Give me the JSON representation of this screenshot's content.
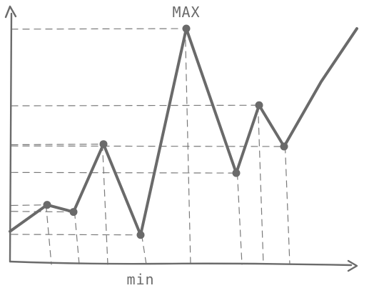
{
  "chart_data": {
    "type": "line",
    "title": "",
    "xlabel": "",
    "ylabel": "",
    "grid": false,
    "legend": "none",
    "x": [
      0,
      1,
      2,
      3,
      4,
      5,
      6,
      7,
      8,
      9,
      10
    ],
    "series": [
      {
        "values": [
          5.6,
          10.1,
          8.9,
          20.4,
          5.0,
          40.0,
          15.5,
          27.0,
          20.0,
          31.0,
          40.0
        ],
        "markers": [
          false,
          true,
          true,
          true,
          true,
          true,
          true,
          true,
          true,
          false,
          false
        ]
      }
    ],
    "annotations": {
      "max": "MAX",
      "min": "min"
    },
    "colors": {
      "line": "#6a6a6a",
      "axis": "#6b6b6b",
      "guide": "#7a7a7a"
    }
  }
}
